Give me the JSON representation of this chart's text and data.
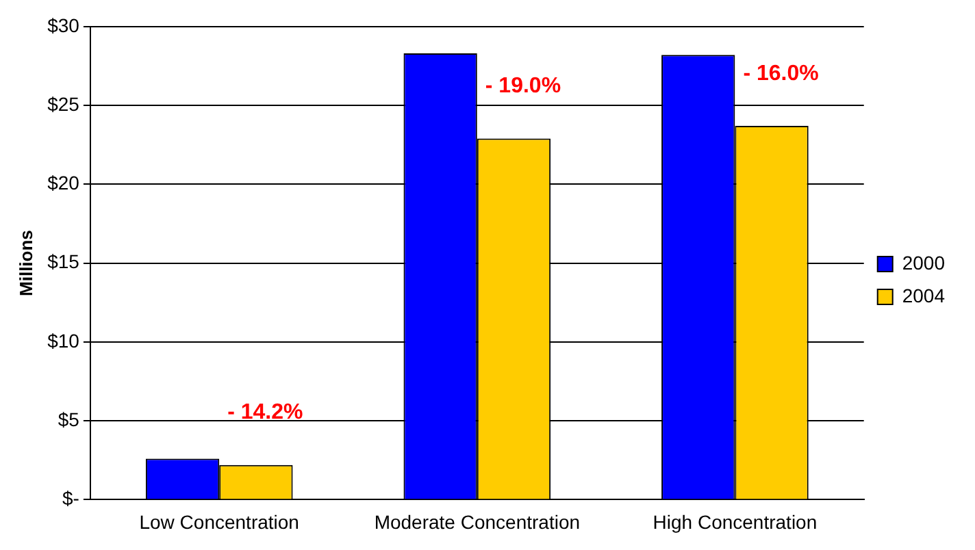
{
  "chart_data": {
    "type": "bar",
    "ylabel": "Millions",
    "categories": [
      "Low Concentration",
      "Moderate Concentration",
      "High Concentration"
    ],
    "series": [
      {
        "name": "2000",
        "color": "#0000ff",
        "values": [
          2.6,
          28.3,
          28.2
        ]
      },
      {
        "name": "2004",
        "color": "#ffcc00",
        "values": [
          2.2,
          22.9,
          23.7
        ]
      }
    ],
    "ylim": [
      0,
      30
    ],
    "yticks": [
      {
        "value": 0,
        "label": "$-"
      },
      {
        "value": 5,
        "label": "$5"
      },
      {
        "value": 10,
        "label": "$10"
      },
      {
        "value": 15,
        "label": "$15"
      },
      {
        "value": 20,
        "label": "$20"
      },
      {
        "value": 25,
        "label": "$25"
      },
      {
        "value": 30,
        "label": "$30"
      }
    ],
    "grid": "y",
    "legend": "right",
    "annotations": [
      {
        "text": "- 14.2%",
        "x": "Low Concentration",
        "y": 2.2
      },
      {
        "text": "- 19.0%",
        "x": "Moderate Concentration",
        "y": 22.9
      },
      {
        "text": "- 16.0%",
        "x": "High Concentration",
        "y": 23.7
      }
    ]
  }
}
